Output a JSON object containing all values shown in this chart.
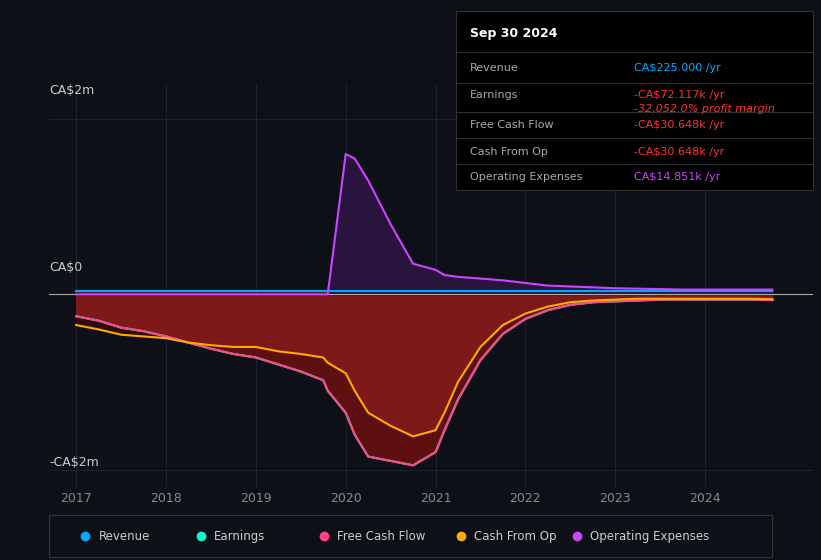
{
  "background_color": "#0d1117",
  "plot_bg_color": "#0d1117",
  "xlim": [
    2016.7,
    2025.2
  ],
  "ylim": [
    -2.2,
    2.4
  ],
  "grid_color": "#1e2535",
  "zero_line_color": "#aaaaaa",
  "revenue_color": "#00aaff",
  "earnings_color": "#00ffcc",
  "fcf_color": "#ff4488",
  "cashop_color": "#ffaa00",
  "opex_color": "#cc44ff",
  "fill_red_color": "#8b1a1a",
  "fill_dark_red_color": "#4a0a0a",
  "opex_fill_color": "#2a1540",
  "years": [
    2017.0,
    2017.25,
    2017.5,
    2017.75,
    2018.0,
    2018.25,
    2018.5,
    2018.75,
    2019.0,
    2019.25,
    2019.5,
    2019.75,
    2019.8,
    2020.0,
    2020.1,
    2020.25,
    2020.5,
    2020.75,
    2021.0,
    2021.1,
    2021.25,
    2021.5,
    2021.75,
    2022.0,
    2022.25,
    2022.5,
    2022.75,
    2023.0,
    2023.25,
    2023.5,
    2023.75,
    2024.0,
    2024.25,
    2024.5,
    2024.75
  ],
  "revenue": [
    0.04,
    0.04,
    0.04,
    0.04,
    0.04,
    0.04,
    0.04,
    0.04,
    0.04,
    0.04,
    0.04,
    0.04,
    0.04,
    0.04,
    0.04,
    0.04,
    0.04,
    0.04,
    0.04,
    0.04,
    0.04,
    0.04,
    0.04,
    0.04,
    0.04,
    0.04,
    0.04,
    0.04,
    0.04,
    0.04,
    0.04,
    0.04,
    0.04,
    0.04,
    0.04
  ],
  "earnings": [
    -0.25,
    -0.3,
    -0.38,
    -0.42,
    -0.48,
    -0.55,
    -0.62,
    -0.68,
    -0.72,
    -0.8,
    -0.88,
    -0.98,
    -1.1,
    -1.35,
    -1.6,
    -1.85,
    -1.9,
    -1.95,
    -1.8,
    -1.55,
    -1.2,
    -0.75,
    -0.45,
    -0.28,
    -0.18,
    -0.12,
    -0.09,
    -0.08,
    -0.07,
    -0.06,
    -0.06,
    -0.06,
    -0.06,
    -0.06,
    -0.065
  ],
  "fcf": [
    -0.25,
    -0.3,
    -0.38,
    -0.42,
    -0.48,
    -0.55,
    -0.62,
    -0.68,
    -0.72,
    -0.8,
    -0.88,
    -0.98,
    -1.1,
    -1.35,
    -1.6,
    -1.85,
    -1.9,
    -1.95,
    -1.8,
    -1.55,
    -1.2,
    -0.75,
    -0.45,
    -0.28,
    -0.18,
    -0.12,
    -0.09,
    -0.08,
    -0.07,
    -0.06,
    -0.06,
    -0.06,
    -0.06,
    -0.06,
    -0.065
  ],
  "cashop": [
    -0.35,
    -0.4,
    -0.46,
    -0.48,
    -0.5,
    -0.55,
    -0.58,
    -0.6,
    -0.6,
    -0.65,
    -0.68,
    -0.72,
    -0.78,
    -0.9,
    -1.1,
    -1.35,
    -1.5,
    -1.62,
    -1.55,
    -1.35,
    -1.0,
    -0.6,
    -0.35,
    -0.22,
    -0.14,
    -0.09,
    -0.07,
    -0.06,
    -0.05,
    -0.05,
    -0.05,
    -0.05,
    -0.05,
    -0.05,
    -0.055
  ],
  "opex": [
    0.0,
    0.0,
    0.0,
    0.0,
    0.0,
    0.0,
    0.0,
    0.0,
    0.0,
    0.0,
    0.0,
    0.0,
    0.0,
    1.6,
    1.55,
    1.3,
    0.8,
    0.35,
    0.28,
    0.22,
    0.2,
    0.18,
    0.16,
    0.13,
    0.1,
    0.09,
    0.08,
    0.07,
    0.065,
    0.06,
    0.055,
    0.055,
    0.055,
    0.055,
    0.055
  ],
  "legend_labels": [
    "Revenue",
    "Earnings",
    "Free Cash Flow",
    "Cash From Op",
    "Operating Expenses"
  ],
  "legend_colors": [
    "#00aaff",
    "#00ffcc",
    "#ff4488",
    "#ffaa00",
    "#cc44ff"
  ],
  "xticks": [
    2017,
    2018,
    2019,
    2020,
    2021,
    2022,
    2023,
    2024
  ],
  "xtick_labels": [
    "2017",
    "2018",
    "2019",
    "2020",
    "2021",
    "2022",
    "2023",
    "2024"
  ],
  "table_title": "Sep 30 2024",
  "table_rows": [
    {
      "label": "Revenue",
      "value": "CA$225.000 /yr",
      "vcolor": "#00aaff",
      "italic": false
    },
    {
      "label": "Earnings",
      "value": "-CA$72.117k /yr",
      "vcolor": "#ff3333",
      "italic": false
    },
    {
      "label": "",
      "value": "-32,052.0% profit margin",
      "vcolor": "#ff3333",
      "italic": true
    },
    {
      "label": "Free Cash Flow",
      "value": "-CA$30.648k /yr",
      "vcolor": "#ff3333",
      "italic": false
    },
    {
      "label": "Cash From Op",
      "value": "-CA$30.648k /yr",
      "vcolor": "#ff3333",
      "italic": false
    },
    {
      "label": "Operating Expenses",
      "value": "CA$14.851k /yr",
      "vcolor": "#cc44ff",
      "italic": false
    }
  ]
}
